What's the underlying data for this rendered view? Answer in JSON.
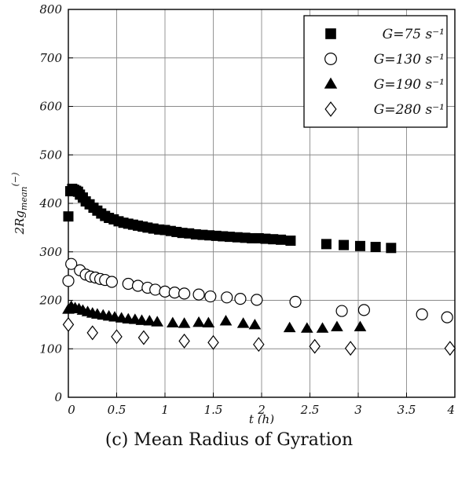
{
  "caption": "(c) Mean Radius of Gyration",
  "chart_data": {
    "type": "scatter",
    "xlabel": "t (h)",
    "ylabel": {
      "base": "2Rg",
      "sub": "mean",
      "sup": "(−)"
    },
    "xlim": [
      0,
      4
    ],
    "ylim": [
      0,
      800
    ],
    "xticks": [
      "0",
      "0.5",
      "1",
      "1.5",
      "2",
      "2.5",
      "3",
      "3.5",
      "4"
    ],
    "yticks": [
      "0",
      "100",
      "200",
      "300",
      "400",
      "500",
      "600",
      "700",
      "800"
    ],
    "grid": true,
    "legend_position": "top-right",
    "series": [
      {
        "name": "G=75 s⁻¹",
        "marker": "square",
        "points": [
          [
            0.0,
            373
          ],
          [
            0.02,
            425
          ],
          [
            0.04,
            430
          ],
          [
            0.06,
            428
          ],
          [
            0.08,
            426
          ],
          [
            0.1,
            424
          ],
          [
            0.12,
            418
          ],
          [
            0.15,
            412
          ],
          [
            0.18,
            404
          ],
          [
            0.22,
            398
          ],
          [
            0.26,
            391
          ],
          [
            0.3,
            385
          ],
          [
            0.34,
            379
          ],
          [
            0.38,
            374
          ],
          [
            0.42,
            370
          ],
          [
            0.47,
            367
          ],
          [
            0.52,
            363
          ],
          [
            0.57,
            360
          ],
          [
            0.62,
            358
          ],
          [
            0.67,
            356
          ],
          [
            0.72,
            354
          ],
          [
            0.77,
            352
          ],
          [
            0.82,
            350
          ],
          [
            0.88,
            348
          ],
          [
            0.94,
            346
          ],
          [
            1.0,
            345
          ],
          [
            1.06,
            343
          ],
          [
            1.12,
            341
          ],
          [
            1.18,
            339
          ],
          [
            1.25,
            338
          ],
          [
            1.32,
            336
          ],
          [
            1.39,
            335
          ],
          [
            1.46,
            334
          ],
          [
            1.53,
            333
          ],
          [
            1.6,
            332
          ],
          [
            1.67,
            331
          ],
          [
            1.75,
            330
          ],
          [
            1.83,
            329
          ],
          [
            1.9,
            328
          ],
          [
            1.97,
            328
          ],
          [
            2.04,
            327
          ],
          [
            2.12,
            326
          ],
          [
            2.2,
            325
          ],
          [
            2.3,
            323
          ],
          [
            2.67,
            316
          ],
          [
            2.85,
            314
          ],
          [
            3.02,
            312
          ],
          [
            3.18,
            310
          ],
          [
            3.34,
            308
          ]
        ]
      },
      {
        "name": "G=130 s⁻¹",
        "marker": "circle",
        "points": [
          [
            0.0,
            240
          ],
          [
            0.03,
            275
          ],
          [
            0.12,
            262
          ],
          [
            0.18,
            253
          ],
          [
            0.23,
            249
          ],
          [
            0.28,
            247
          ],
          [
            0.33,
            244
          ],
          [
            0.38,
            242
          ],
          [
            0.45,
            238
          ],
          [
            0.62,
            234
          ],
          [
            0.72,
            230
          ],
          [
            0.82,
            226
          ],
          [
            0.9,
            222
          ],
          [
            1.0,
            218
          ],
          [
            1.1,
            216
          ],
          [
            1.2,
            214
          ],
          [
            1.35,
            212
          ],
          [
            1.47,
            208
          ],
          [
            1.64,
            206
          ],
          [
            1.78,
            203
          ],
          [
            1.95,
            201
          ],
          [
            2.35,
            197
          ],
          [
            2.83,
            178
          ],
          [
            3.06,
            180
          ],
          [
            3.66,
            171
          ],
          [
            3.92,
            165
          ]
        ]
      },
      {
        "name": "G=190 s⁻¹",
        "marker": "triangle",
        "points": [
          [
            0.0,
            181
          ],
          [
            0.03,
            187
          ],
          [
            0.07,
            184
          ],
          [
            0.11,
            182
          ],
          [
            0.15,
            179
          ],
          [
            0.2,
            176
          ],
          [
            0.25,
            173
          ],
          [
            0.3,
            171
          ],
          [
            0.36,
            169
          ],
          [
            0.42,
            167
          ],
          [
            0.48,
            165
          ],
          [
            0.55,
            163
          ],
          [
            0.62,
            161
          ],
          [
            0.69,
            160
          ],
          [
            0.76,
            158
          ],
          [
            0.84,
            157
          ],
          [
            0.92,
            155
          ],
          [
            1.08,
            153
          ],
          [
            1.2,
            152
          ],
          [
            1.35,
            154
          ],
          [
            1.45,
            153
          ],
          [
            1.63,
            157
          ],
          [
            1.81,
            152
          ],
          [
            1.93,
            149
          ],
          [
            2.29,
            143
          ],
          [
            2.47,
            142
          ],
          [
            2.63,
            142
          ],
          [
            2.78,
            145
          ],
          [
            3.02,
            145
          ]
        ]
      },
      {
        "name": "G=280 s⁻¹",
        "marker": "diamond",
        "points": [
          [
            0.0,
            150
          ],
          [
            0.25,
            133
          ],
          [
            0.5,
            125
          ],
          [
            0.78,
            123
          ],
          [
            1.2,
            116
          ],
          [
            1.5,
            113
          ],
          [
            1.97,
            109
          ],
          [
            2.55,
            105
          ],
          [
            2.92,
            101
          ],
          [
            3.95,
            101
          ]
        ]
      }
    ]
  }
}
